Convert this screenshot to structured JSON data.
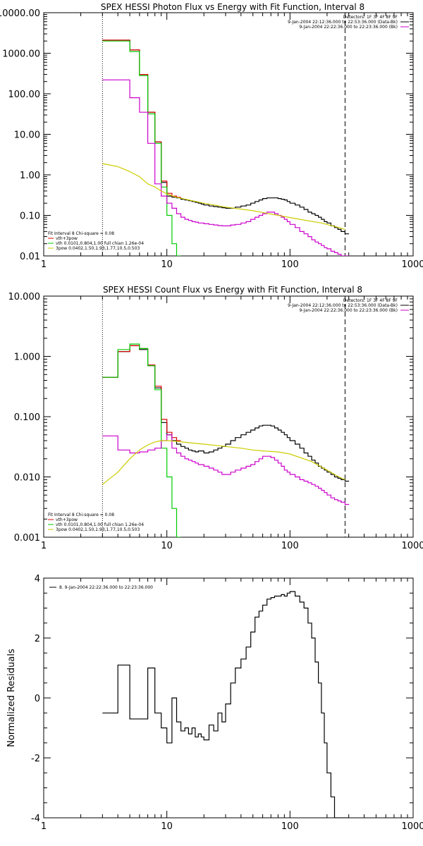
{
  "chart_data": [
    {
      "type": "line",
      "title": "SPEX HESSI Photon Flux vs Energy with Fit Function, Interval 8",
      "xscale": "log",
      "yscale": "log",
      "xlim": [
        1,
        1000
      ],
      "ylim": [
        0.01,
        10000
      ],
      "x_ticks": [
        "1",
        "10",
        "100",
        "1000"
      ],
      "y_ticks": [
        "0.01",
        "0.10",
        "1.00",
        "10.00",
        "100.00",
        "1000.00",
        "10000.00"
      ],
      "x_tick_values": [
        1,
        10,
        100,
        1000
      ],
      "y_tick_values": [
        0.01,
        0.1,
        1,
        10,
        100,
        1000,
        10000
      ],
      "vlines": [
        {
          "x": 3,
          "style": "dotted",
          "color": "#000000"
        },
        {
          "x": 280,
          "style": "dashed",
          "color": "#000000"
        }
      ],
      "legend_top_right": [
        "Detectors: 1F 3F 4F 8F 9F",
        "9-Jan-2004 22:12:36.000 to 22:53:36.000 (Data-Bk)",
        "9-Jan-2004 22:22:36.000 to 22:23:36.000 (Bk)"
      ],
      "legend_top_colors": [
        "",
        "#000000",
        "#cc00cc"
      ],
      "legend_bottom_left": [
        "Fit Interval 8   Chi-square = 0.08",
        "vth+3pow",
        "vth 0.0101,0.804,1.00  full chian 1.26e-04",
        "3pow 0.0402,1.50,1.93,1.77,10.5,0.503"
      ],
      "legend_bottom_colors": [
        "",
        "#dd0000",
        "#00cc00",
        "#cccc00"
      ],
      "series": [
        {
          "color": "#000000",
          "step": true,
          "x": [
            3,
            3.5,
            4,
            4.5,
            5,
            5.5,
            6,
            6.5,
            7,
            7.5,
            8,
            8.5,
            9,
            9.5,
            10,
            11,
            12,
            13,
            14,
            15,
            16,
            17,
            18,
            19,
            20,
            22,
            24,
            26,
            28,
            30,
            33,
            36,
            40,
            44,
            48,
            52,
            56,
            60,
            65,
            70,
            75,
            80,
            85,
            90,
            95,
            100,
            110,
            120,
            130,
            140,
            150,
            160,
            170,
            180,
            190,
            200,
            215,
            230,
            245,
            260,
            280
          ],
          "y": [
            2100,
            2100,
            2100,
            2100,
            1200,
            1200,
            300,
            300,
            35,
            35,
            6.5,
            6.5,
            0.65,
            0.65,
            0.3,
            0.28,
            0.27,
            0.25,
            0.24,
            0.23,
            0.22,
            0.21,
            0.2,
            0.19,
            0.18,
            0.17,
            0.165,
            0.16,
            0.155,
            0.15,
            0.15,
            0.16,
            0.17,
            0.18,
            0.2,
            0.22,
            0.24,
            0.26,
            0.27,
            0.27,
            0.27,
            0.26,
            0.25,
            0.24,
            0.22,
            0.2,
            0.18,
            0.16,
            0.14,
            0.12,
            0.11,
            0.1,
            0.09,
            0.08,
            0.07,
            0.065,
            0.055,
            0.05,
            0.045,
            0.04,
            0.035
          ]
        },
        {
          "color": "#dd0000",
          "step": true,
          "x": [
            3,
            3.5,
            4,
            4.5,
            5,
            5.5,
            6,
            6.5,
            7,
            7.5,
            8,
            8.5,
            9,
            9.5,
            10,
            11,
            12
          ],
          "y": [
            2100,
            2100,
            2100,
            2100,
            1200,
            1200,
            300,
            300,
            35,
            35,
            6.5,
            6.5,
            0.7,
            0.7,
            0.35,
            0.3,
            0.28
          ]
        },
        {
          "color": "#00cc00",
          "step": true,
          "x": [
            3,
            3.5,
            4,
            4.5,
            5,
            5.5,
            6,
            6.5,
            7,
            7.5,
            8,
            8.5,
            9,
            9.5,
            10,
            11,
            12
          ],
          "y": [
            2000,
            2000,
            2000,
            2000,
            1100,
            1100,
            280,
            280,
            32,
            32,
            6,
            6,
            0.5,
            0.5,
            0.1,
            0.02,
            0.01
          ]
        },
        {
          "color": "#cc00cc",
          "step": true,
          "x": [
            3,
            3.5,
            4,
            4.5,
            5,
            5.5,
            6,
            6.5,
            7,
            7.5,
            8,
            8.5,
            9,
            9.5,
            10,
            11,
            12,
            13,
            14,
            15,
            16,
            17,
            18,
            20,
            22,
            24,
            26,
            28,
            30,
            33,
            36,
            40,
            44,
            48,
            52,
            56,
            60,
            65,
            70,
            75,
            80,
            85,
            90,
            95,
            100,
            110,
            120,
            130,
            140,
            150,
            160,
            170,
            180,
            190,
            200,
            215,
            230,
            245,
            260,
            280
          ],
          "y": [
            220,
            220,
            220,
            220,
            80,
            80,
            35,
            35,
            6,
            6,
            0.6,
            0.6,
            0.3,
            0.3,
            0.2,
            0.15,
            0.11,
            0.09,
            0.08,
            0.075,
            0.07,
            0.068,
            0.065,
            0.062,
            0.06,
            0.058,
            0.056,
            0.055,
            0.055,
            0.058,
            0.06,
            0.065,
            0.07,
            0.08,
            0.09,
            0.1,
            0.11,
            0.12,
            0.12,
            0.11,
            0.1,
            0.09,
            0.08,
            0.07,
            0.06,
            0.05,
            0.04,
            0.035,
            0.03,
            0.025,
            0.022,
            0.02,
            0.018,
            0.016,
            0.015,
            0.013,
            0.012,
            0.011,
            0.01,
            0.01
          ]
        },
        {
          "color": "#cccc00",
          "step": false,
          "x": [
            3,
            4,
            5,
            6,
            7,
            8,
            9,
            10,
            12,
            15,
            20,
            30,
            50,
            80,
            120,
            180,
            250,
            280
          ],
          "y": [
            1.9,
            1.6,
            1.2,
            0.9,
            0.6,
            0.5,
            0.4,
            0.34,
            0.28,
            0.24,
            0.2,
            0.16,
            0.13,
            0.1,
            0.08,
            0.065,
            0.05,
            0.045
          ]
        }
      ]
    },
    {
      "type": "line",
      "title": "SPEX HESSI Count Flux vs Energy with Fit Function, Interval 8",
      "xscale": "log",
      "yscale": "log",
      "xlim": [
        1,
        1000
      ],
      "ylim": [
        0.001,
        10
      ],
      "x_ticks": [
        "1",
        "10",
        "100",
        "1000"
      ],
      "y_ticks": [
        "0.001",
        "0.010",
        "0.100",
        "1.000",
        "10.000"
      ],
      "x_tick_values": [
        1,
        10,
        100,
        1000
      ],
      "y_tick_values": [
        0.001,
        0.01,
        0.1,
        1,
        10
      ],
      "vlines": [
        {
          "x": 3,
          "style": "dotted",
          "color": "#000000"
        },
        {
          "x": 280,
          "style": "dashed",
          "color": "#000000"
        }
      ],
      "legend_top_right": [
        "Detectors: 1F 3F 4F 8F 9F",
        "9-Jan-2004 22:12:36.000 to 22:53:36.000 (Data-Bk)",
        "9-Jan-2004 22:22:36.000 to 22:23:36.000 (Bk)"
      ],
      "legend_top_colors": [
        "",
        "#000000",
        "#cc00cc"
      ],
      "legend_bottom_left": [
        "Fit Interval 8   Chi-square = 0.08",
        "vth+3pow",
        "vth 0.0101,0.804,1.00  full chian 1.26e-04",
        "3pow 0.0402,1.50,1.93,1.77,10.5,0.503"
      ],
      "legend_bottom_colors": [
        "",
        "#dd0000",
        "#00cc00",
        "#cccc00"
      ],
      "series": [
        {
          "color": "#000000",
          "step": true,
          "x": [
            3,
            4,
            5,
            5.5,
            6,
            6.5,
            7,
            7.5,
            8,
            8.5,
            9,
            9.5,
            10,
            11,
            12,
            13,
            14,
            15,
            16,
            17,
            18,
            20,
            22,
            24,
            26,
            28,
            30,
            33,
            36,
            40,
            44,
            48,
            52,
            56,
            60,
            65,
            70,
            75,
            80,
            85,
            90,
            95,
            100,
            110,
            120,
            130,
            140,
            150,
            160,
            170,
            180,
            190,
            200,
            215,
            230,
            245,
            260,
            280
          ],
          "y": [
            0.45,
            1.2,
            1.5,
            1.5,
            1.3,
            1.3,
            0.7,
            0.7,
            0.3,
            0.3,
            0.08,
            0.08,
            0.05,
            0.04,
            0.035,
            0.032,
            0.03,
            0.028,
            0.027,
            0.026,
            0.027,
            0.025,
            0.026,
            0.028,
            0.03,
            0.032,
            0.035,
            0.04,
            0.045,
            0.05,
            0.055,
            0.06,
            0.065,
            0.07,
            0.072,
            0.072,
            0.07,
            0.065,
            0.06,
            0.055,
            0.05,
            0.045,
            0.04,
            0.035,
            0.03,
            0.025,
            0.022,
            0.019,
            0.017,
            0.015,
            0.014,
            0.013,
            0.012,
            0.011,
            0.01,
            0.0095,
            0.009,
            0.0085
          ]
        },
        {
          "color": "#dd0000",
          "step": true,
          "x": [
            3,
            4,
            5,
            5.5,
            6,
            6.5,
            7,
            7.5,
            8,
            8.5,
            9,
            9.5,
            10,
            11,
            12
          ],
          "y": [
            0.45,
            1.2,
            1.5,
            1.5,
            1.35,
            1.35,
            0.72,
            0.72,
            0.32,
            0.32,
            0.09,
            0.09,
            0.055,
            0.045,
            0.04
          ]
        },
        {
          "color": "#00cc00",
          "step": true,
          "x": [
            3,
            4,
            5,
            5.5,
            6,
            6.5,
            7,
            7.5,
            8,
            8.5,
            9,
            9.5,
            10,
            11,
            12
          ],
          "y": [
            0.45,
            1.3,
            1.6,
            1.6,
            1.35,
            1.35,
            0.7,
            0.7,
            0.28,
            0.28,
            0.03,
            0.03,
            0.01,
            0.003,
            0.001
          ]
        },
        {
          "color": "#cc00cc",
          "step": true,
          "x": [
            3,
            4,
            5,
            6,
            7,
            8,
            9,
            10,
            11,
            12,
            13,
            14,
            15,
            16,
            17,
            18,
            20,
            22,
            24,
            26,
            28,
            30,
            33,
            36,
            40,
            44,
            48,
            52,
            56,
            60,
            65,
            70,
            75,
            80,
            85,
            90,
            95,
            100,
            110,
            120,
            130,
            140,
            150,
            160,
            170,
            180,
            190,
            200,
            215,
            230,
            245,
            260,
            280
          ],
          "y": [
            0.048,
            0.028,
            0.025,
            0.026,
            0.028,
            0.03,
            0.04,
            0.05,
            0.03,
            0.025,
            0.022,
            0.02,
            0.019,
            0.018,
            0.017,
            0.016,
            0.015,
            0.014,
            0.013,
            0.012,
            0.011,
            0.011,
            0.012,
            0.013,
            0.014,
            0.015,
            0.016,
            0.018,
            0.02,
            0.022,
            0.022,
            0.021,
            0.019,
            0.017,
            0.015,
            0.013,
            0.012,
            0.011,
            0.01,
            0.009,
            0.0085,
            0.008,
            0.0075,
            0.007,
            0.0065,
            0.006,
            0.0055,
            0.005,
            0.0045,
            0.0042,
            0.004,
            0.0038,
            0.0035
          ]
        },
        {
          "color": "#cccc00",
          "step": false,
          "x": [
            3,
            4,
            5,
            6,
            7,
            8,
            9,
            10,
            12,
            15,
            20,
            30,
            40,
            50,
            60,
            80,
            100,
            150,
            200,
            250,
            280
          ],
          "y": [
            0.0075,
            0.012,
            0.02,
            0.028,
            0.034,
            0.038,
            0.04,
            0.04,
            0.039,
            0.037,
            0.035,
            0.032,
            0.03,
            0.028,
            0.027,
            0.026,
            0.024,
            0.018,
            0.013,
            0.01,
            0.009
          ]
        }
      ]
    },
    {
      "type": "line",
      "title": "",
      "xscale": "log",
      "yscale": "linear",
      "xlim": [
        1,
        1000
      ],
      "ylim": [
        -4,
        4
      ],
      "ylabel": "Normalized Residuals",
      "x_ticks": [
        "1",
        "10",
        "100",
        "1000"
      ],
      "y_ticks": [
        "-4",
        "-2",
        "0",
        "2",
        "4"
      ],
      "x_tick_values": [
        1,
        10,
        100,
        1000
      ],
      "y_tick_values": [
        -4,
        -2,
        0,
        2,
        4
      ],
      "legend_top_left": [
        "8.  9-Jan-2004 22:22:36.000 to 22:23:36.000"
      ],
      "series": [
        {
          "color": "#000000",
          "step": true,
          "x": [
            3,
            3.5,
            4,
            4.5,
            5,
            5.5,
            6,
            6.5,
            7,
            7.5,
            8,
            8.5,
            9,
            9.5,
            10,
            11,
            12,
            13,
            14,
            15,
            16,
            17,
            18,
            19,
            20,
            22,
            24,
            26,
            28,
            30,
            33,
            36,
            40,
            44,
            48,
            52,
            56,
            60,
            65,
            70,
            75,
            80,
            85,
            90,
            95,
            100,
            110,
            120,
            130,
            140,
            150,
            160,
            170,
            180,
            190,
            200,
            215,
            230,
            245,
            260,
            280
          ],
          "y": [
            -0.5,
            -0.5,
            1.1,
            1.1,
            -0.7,
            -0.7,
            -0.7,
            -0.7,
            1,
            1,
            -0.5,
            -0.5,
            -1,
            -1,
            -1.5,
            0,
            -0.8,
            -1.1,
            -1,
            -1.2,
            -1,
            -1.3,
            -1.2,
            -1.3,
            -1.4,
            -0.9,
            -1.1,
            -0.5,
            -0.8,
            -0.2,
            0.5,
            1,
            1.3,
            1.7,
            2.2,
            2.7,
            2.9,
            3.1,
            3.3,
            3.35,
            3.4,
            3.4,
            3.45,
            3.4,
            3.5,
            3.55,
            3.4,
            3.2,
            3,
            2.5,
            2,
            1.2,
            0.5,
            -0.5,
            -1.5,
            -2.5,
            -3.3,
            -4,
            -4,
            -4,
            -4
          ]
        }
      ]
    }
  ]
}
